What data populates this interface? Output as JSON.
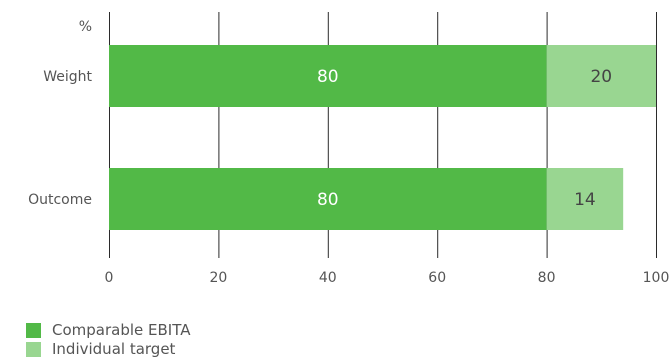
{
  "chart_data": {
    "type": "bar",
    "orientation": "horizontal",
    "stacked": true,
    "unit": "%",
    "categories": [
      "Weight",
      "Outcome"
    ],
    "series": [
      {
        "name": "Comparable EBITA",
        "values": [
          80,
          80
        ],
        "color": "#52b947",
        "label_color": "#ffffff"
      },
      {
        "name": "Individual target",
        "values": [
          20,
          14
        ],
        "color": "#99d691",
        "label_color": "#444444"
      }
    ],
    "xlim": [
      0,
      100
    ],
    "xticks": [
      0,
      20,
      40,
      60,
      80,
      100
    ],
    "grid": true,
    "legend_position": "bottom-left"
  }
}
